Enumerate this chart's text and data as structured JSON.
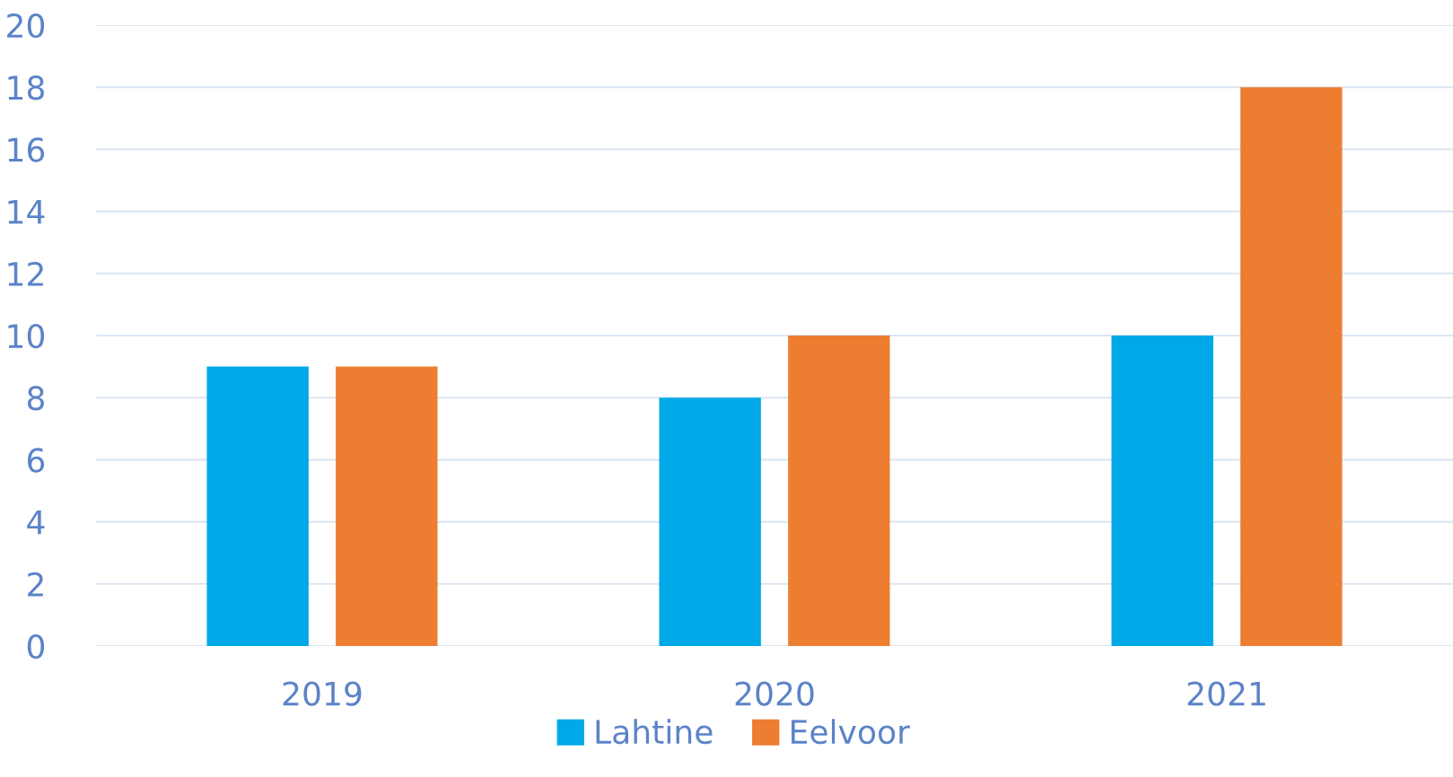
{
  "chart_data": {
    "type": "bar",
    "categories": [
      "2019",
      "2020",
      "2021"
    ],
    "series": [
      {
        "name": "Lahtine",
        "color": "#00a8e8",
        "values": [
          9,
          8,
          10
        ]
      },
      {
        "name": "Eelvoor",
        "color": "#ed7d31",
        "values": [
          9,
          10,
          18
        ]
      }
    ],
    "ylim": [
      0,
      20
    ],
    "yticks": [
      0,
      2,
      4,
      6,
      8,
      10,
      12,
      14,
      16,
      18,
      20
    ],
    "grid": "y",
    "legend": "bottom"
  }
}
